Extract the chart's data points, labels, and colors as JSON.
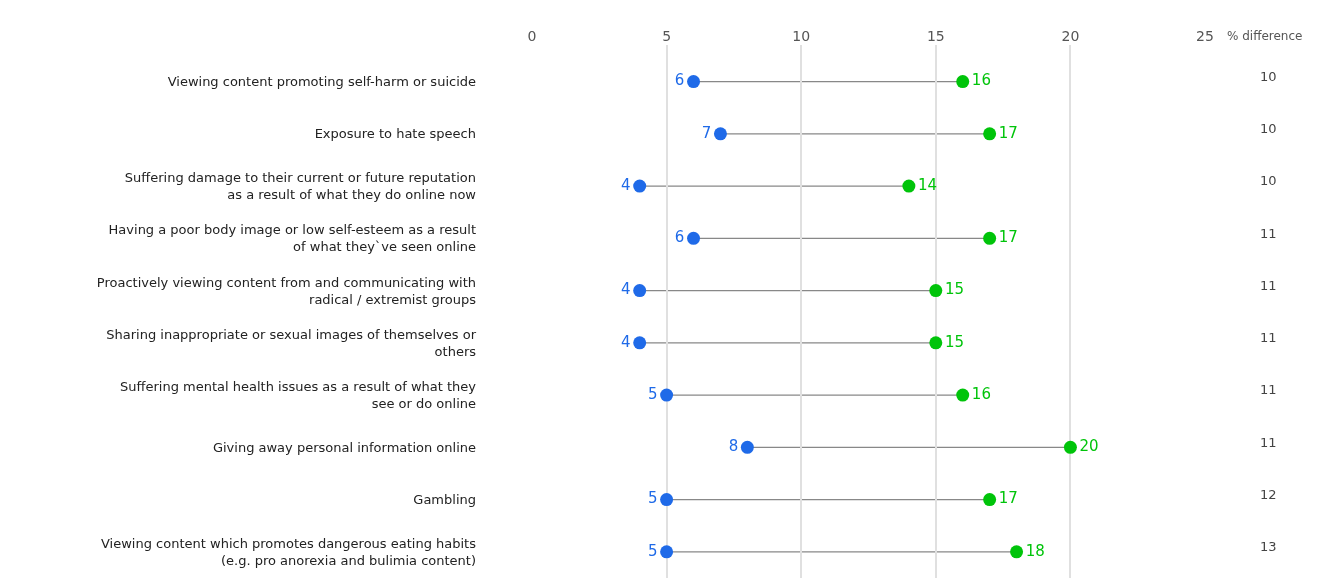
{
  "chart_data": {
    "type": "scatter",
    "orientation": "horizontal",
    "categories": [
      "Viewing content promoting self-harm or suicide",
      "Exposure to hate speech",
      "Suffering damage to their current or future reputation as a result of what they do online now",
      "Having a poor body image or low self-esteem as a result of what they`ve seen online",
      "Proactively viewing content from and communicating with radical / extremist groups",
      "Sharing inappropriate or sexual images of themselves or others",
      "Suffering mental health issues as a result of what they see or do online",
      "Giving away personal information online",
      "Gambling",
      "Viewing content which promotes dangerous eating habits (e.g. pro anorexia and bulimia content)"
    ],
    "series": [
      {
        "color": "#1f6ae8",
        "values": [
          6,
          7,
          4,
          6,
          4,
          4,
          5,
          8,
          5,
          5
        ]
      },
      {
        "color": "#00c40a",
        "values": [
          16,
          17,
          14,
          17,
          15,
          15,
          16,
          20,
          17,
          18
        ]
      }
    ],
    "data_labels": true,
    "marker": "circle",
    "grid": "x",
    "xlim": [
      0,
      25
    ],
    "xticks": [
      0,
      5,
      10,
      15,
      20,
      25
    ],
    "annotations": [
      "% difference",
      "10",
      "10",
      "10",
      "11",
      "11",
      "11",
      "11",
      "11",
      "12",
      "13"
    ]
  }
}
